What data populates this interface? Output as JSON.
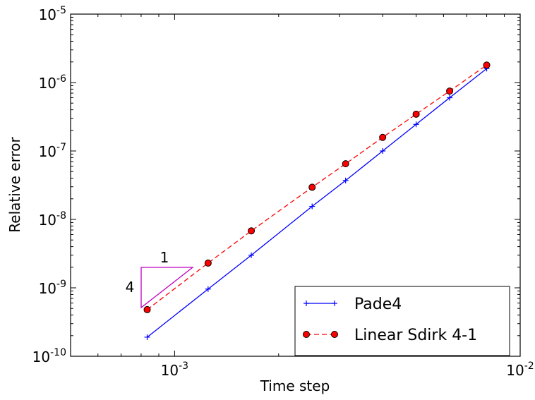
{
  "chart_data": {
    "type": "line",
    "title": "",
    "xlabel": "Time step",
    "ylabel": "Relative error",
    "xscale": "log",
    "yscale": "log",
    "xlim": [
      0.0005,
      0.01
    ],
    "ylim": [
      1e-10,
      1e-05
    ],
    "grid": false,
    "legend_position": "lower-right",
    "x_ticks": [
      {
        "value": 0.001,
        "base": "10",
        "exp": "-3"
      },
      {
        "value": 0.01,
        "base": "10",
        "exp": "-2"
      }
    ],
    "y_ticks": [
      {
        "value": 1e-10,
        "base": "10",
        "exp": "-10"
      },
      {
        "value": 1e-09,
        "base": "10",
        "exp": "-9"
      },
      {
        "value": 1e-08,
        "base": "10",
        "exp": "-8"
      },
      {
        "value": 1e-07,
        "base": "10",
        "exp": "-7"
      },
      {
        "value": 1e-06,
        "base": "10",
        "exp": "-6"
      },
      {
        "value": 1e-05,
        "base": "10",
        "exp": "-5"
      }
    ],
    "series": [
      {
        "name": "Pade4",
        "color": "#0000ff",
        "linestyle": "solid",
        "marker": "plus",
        "x": [
          0.000833,
          0.00125,
          0.001667,
          0.0025,
          0.003125,
          0.004,
          0.005,
          0.00625,
          0.008
        ],
        "y": [
          1.9e-10,
          9.6e-10,
          3e-09,
          1.55e-08,
          3.7e-08,
          1e-07,
          2.45e-07,
          6e-07,
          1.6e-06
        ]
      },
      {
        "name": "Linear Sdirk 4-1",
        "color": "#ff0000",
        "linestyle": "dashed",
        "marker": "circle",
        "x": [
          0.000833,
          0.00125,
          0.001667,
          0.0025,
          0.003125,
          0.004,
          0.005,
          0.00625,
          0.008
        ],
        "y": [
          4.8e-10,
          2.3e-09,
          6.8e-09,
          2.95e-08,
          6.5e-08,
          1.58e-07,
          3.45e-07,
          7.5e-07,
          1.8e-06
        ]
      }
    ],
    "slope_triangle": {
      "color": "#c000c0",
      "run_label": "1",
      "rise_label": "4"
    }
  }
}
